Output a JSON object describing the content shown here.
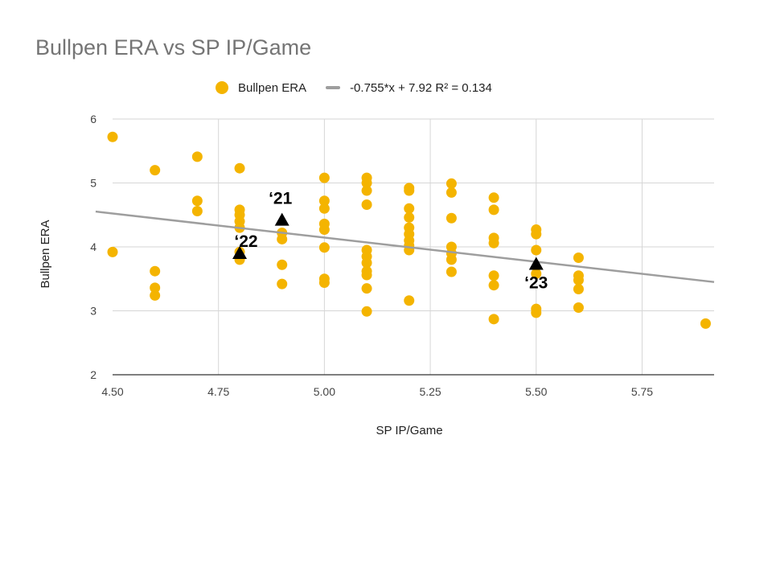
{
  "chart_data": {
    "type": "scatter",
    "title": "Bullpen ERA vs SP IP/Game",
    "xlabel": "SP IP/Game",
    "ylabel": "Bullpen ERA",
    "xlim": [
      4.5,
      5.92
    ],
    "ylim": [
      2,
      6
    ],
    "xticks": [
      "4.50",
      "4.75",
      "5.00",
      "5.25",
      "5.50",
      "5.75"
    ],
    "yticks": [
      "2",
      "3",
      "4",
      "5",
      "6"
    ],
    "grid": true,
    "legend_position": "top-center",
    "colors": {
      "points": "#f4b400",
      "trendline": "#9e9e9e",
      "markers": "#000000"
    },
    "series": [
      {
        "name": "Bullpen ERA",
        "points": [
          [
            4.5,
            5.72
          ],
          [
            4.5,
            3.92
          ],
          [
            4.6,
            5.2
          ],
          [
            4.6,
            3.62
          ],
          [
            4.6,
            3.36
          ],
          [
            4.6,
            3.24
          ],
          [
            4.7,
            5.41
          ],
          [
            4.7,
            4.72
          ],
          [
            4.7,
            4.56
          ],
          [
            4.8,
            5.23
          ],
          [
            4.8,
            4.58
          ],
          [
            4.8,
            4.5
          ],
          [
            4.8,
            4.4
          ],
          [
            4.8,
            4.3
          ],
          [
            4.8,
            3.92
          ],
          [
            4.8,
            3.8
          ],
          [
            4.9,
            4.22
          ],
          [
            4.9,
            4.12
          ],
          [
            4.9,
            3.72
          ],
          [
            4.9,
            3.42
          ],
          [
            5.0,
            5.08
          ],
          [
            5.0,
            4.72
          ],
          [
            5.0,
            4.6
          ],
          [
            5.0,
            4.36
          ],
          [
            5.0,
            4.27
          ],
          [
            5.0,
            3.99
          ],
          [
            5.0,
            3.5
          ],
          [
            5.0,
            3.44
          ],
          [
            5.1,
            5.08
          ],
          [
            5.1,
            5.0
          ],
          [
            5.1,
            4.88
          ],
          [
            5.1,
            4.66
          ],
          [
            5.1,
            3.95
          ],
          [
            5.1,
            3.85
          ],
          [
            5.1,
            3.75
          ],
          [
            5.1,
            3.62
          ],
          [
            5.1,
            3.56
          ],
          [
            5.1,
            3.35
          ],
          [
            5.1,
            2.99
          ],
          [
            5.2,
            4.92
          ],
          [
            5.2,
            4.88
          ],
          [
            5.2,
            4.6
          ],
          [
            5.2,
            4.46
          ],
          [
            5.2,
            4.3
          ],
          [
            5.2,
            4.2
          ],
          [
            5.2,
            4.1
          ],
          [
            5.2,
            4.02
          ],
          [
            5.2,
            3.95
          ],
          [
            5.2,
            3.16
          ],
          [
            5.3,
            4.99
          ],
          [
            5.3,
            4.85
          ],
          [
            5.3,
            4.45
          ],
          [
            5.3,
            4.0
          ],
          [
            5.3,
            3.9
          ],
          [
            5.3,
            3.8
          ],
          [
            5.3,
            3.61
          ],
          [
            5.4,
            4.77
          ],
          [
            5.4,
            4.58
          ],
          [
            5.4,
            4.14
          ],
          [
            5.4,
            4.06
          ],
          [
            5.4,
            3.55
          ],
          [
            5.4,
            3.4
          ],
          [
            5.4,
            2.87
          ],
          [
            5.5,
            4.27
          ],
          [
            5.5,
            4.2
          ],
          [
            5.5,
            3.95
          ],
          [
            5.5,
            3.58
          ],
          [
            5.5,
            3.03
          ],
          [
            5.5,
            2.97
          ],
          [
            5.6,
            3.83
          ],
          [
            5.6,
            3.55
          ],
          [
            5.6,
            3.48
          ],
          [
            5.6,
            3.34
          ],
          [
            5.6,
            3.05
          ],
          [
            5.9,
            2.8
          ]
        ]
      }
    ],
    "trendline": {
      "label": "-0.755*x + 7.92 R² = 0.134",
      "slope": -0.755,
      "intercept": 7.92
    },
    "annotations": [
      {
        "label": "‘21",
        "x": 4.9,
        "y": 4.42
      },
      {
        "label": "‘22",
        "x": 4.8,
        "y": 3.9
      },
      {
        "label": "‘23",
        "x": 5.5,
        "y": 3.73
      }
    ]
  }
}
